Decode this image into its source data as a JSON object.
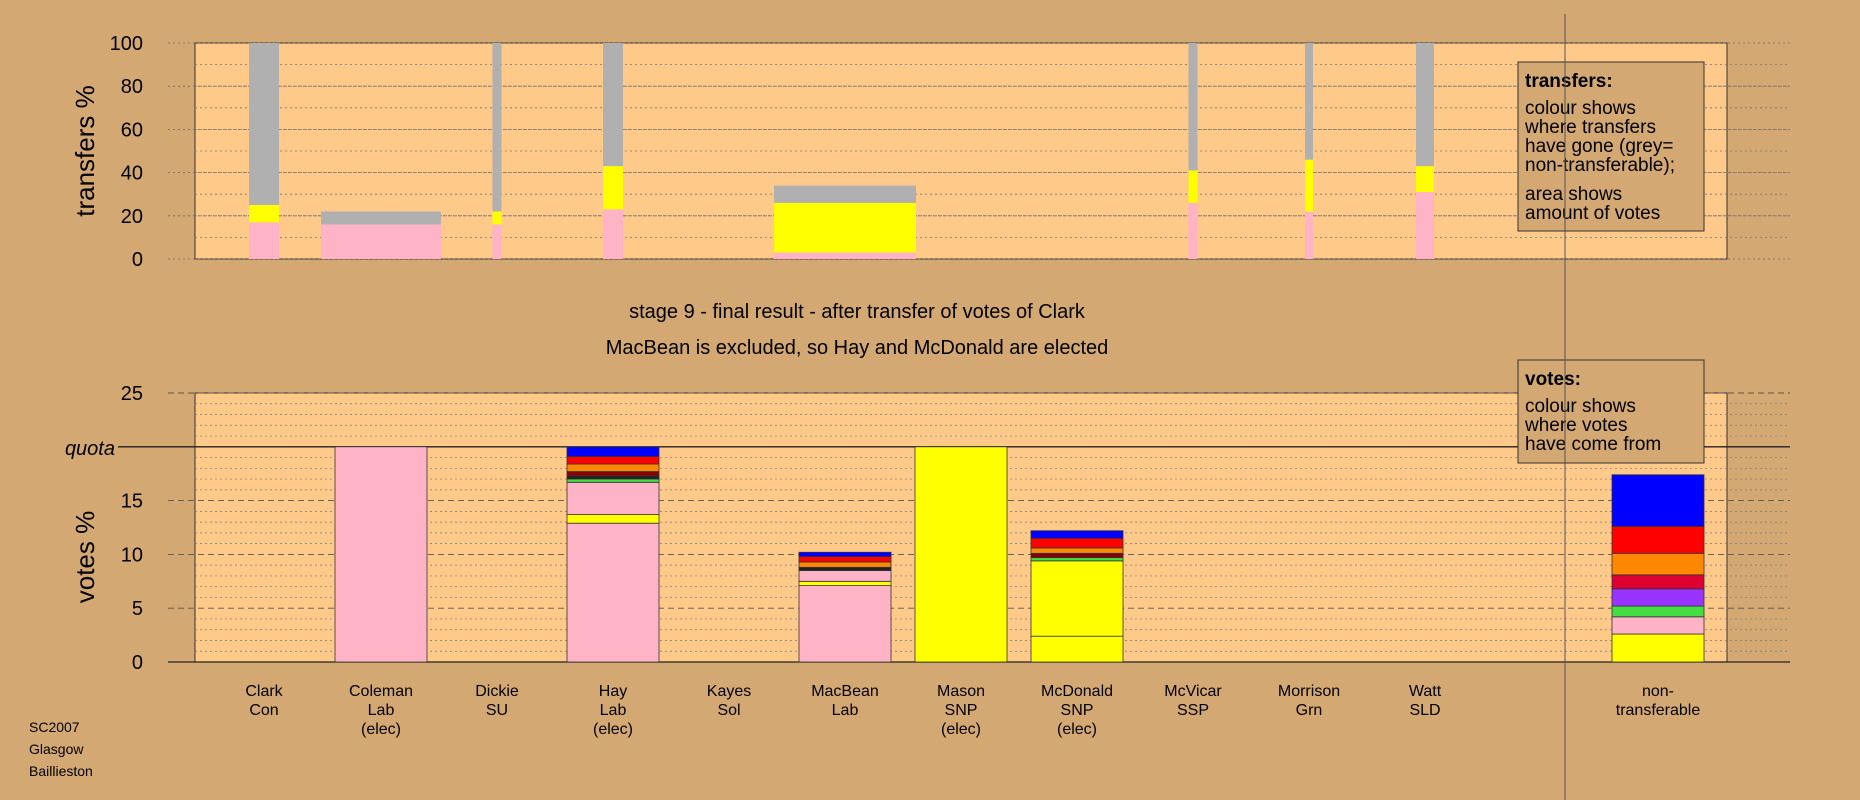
{
  "chart_data": [
    {
      "type": "bar",
      "ylabel": "transfers %",
      "ylim": [
        0,
        100
      ],
      "yticks": [
        0,
        20,
        40,
        60,
        80,
        100
      ],
      "colors": {
        "pink": "#ffb3c6",
        "yellow": "#ffff00",
        "grey": "#b0b0b0",
        "background": "#ffc98a"
      },
      "bars": [
        {
          "candidate": "Clark",
          "segments": [
            {
              "color": "pink",
              "value": 17
            },
            {
              "color": "yellow",
              "value": 8
            },
            {
              "color": "grey",
              "value": 75
            }
          ]
        },
        {
          "candidate": "Coleman",
          "segments": [
            {
              "color": "pink",
              "value": 16
            },
            {
              "color": "grey",
              "value": 6
            }
          ]
        },
        {
          "candidate": "Dickie",
          "segments": [
            {
              "color": "pink",
              "value": 16
            },
            {
              "color": "yellow",
              "value": 6
            },
            {
              "color": "grey",
              "value": 78
            }
          ]
        },
        {
          "candidate": "Hay",
          "segments": [
            {
              "color": "pink",
              "value": 23
            },
            {
              "color": "yellow",
              "value": 20
            },
            {
              "color": "grey",
              "value": 57
            }
          ]
        },
        {
          "candidate": "MacBean",
          "segments": [
            {
              "color": "pink",
              "value": 3
            },
            {
              "color": "yellow",
              "value": 23
            },
            {
              "color": "grey",
              "value": 8
            }
          ]
        },
        {
          "candidate": "McVicar",
          "segments": [
            {
              "color": "pink",
              "value": 26
            },
            {
              "color": "yellow",
              "value": 15
            },
            {
              "color": "grey",
              "value": 59
            }
          ]
        },
        {
          "candidate": "Morrison",
          "segments": [
            {
              "color": "pink",
              "value": 22
            },
            {
              "color": "yellow",
              "value": 24
            },
            {
              "color": "grey",
              "value": 54
            }
          ]
        },
        {
          "candidate": "Watt",
          "segments": [
            {
              "color": "pink",
              "value": 31
            },
            {
              "color": "yellow",
              "value": 12
            },
            {
              "color": "grey",
              "value": 57
            }
          ]
        }
      ]
    },
    {
      "type": "bar",
      "ylabel": "votes %",
      "ylim": [
        0,
        25
      ],
      "yticks": [
        0,
        5,
        10,
        15,
        20,
        25
      ],
      "quota": 20,
      "quota_label": "quota",
      "colors": {
        "pink": "#ffb3c6",
        "yellow": "#ffff00",
        "red": "#ff0000",
        "blue": "#0000ff",
        "orange": "#ff8800",
        "crimson": "#dd0033",
        "purple": "#9933ff",
        "green": "#44dd44",
        "darkred": "#8b0000",
        "black": "#222222",
        "background": "#ffc98a"
      },
      "bars": [
        {
          "candidate": "Coleman",
          "segments": [
            {
              "color": "pink",
              "value": 20.0
            }
          ]
        },
        {
          "candidate": "Hay",
          "segments": [
            {
              "color": "pink",
              "value": 12.9
            },
            {
              "color": "yellow",
              "value": 0.8
            },
            {
              "color": "pink",
              "value": 3.0
            },
            {
              "color": "green",
              "value": 0.3
            },
            {
              "color": "black",
              "value": 0.3
            },
            {
              "color": "darkred",
              "value": 0.4
            },
            {
              "color": "orange",
              "value": 0.7
            },
            {
              "color": "red",
              "value": 0.7
            },
            {
              "color": "blue",
              "value": 0.9
            }
          ]
        },
        {
          "candidate": "MacBean",
          "segments": [
            {
              "color": "pink",
              "value": 7.1
            },
            {
              "color": "yellow",
              "value": 0.4
            },
            {
              "color": "pink",
              "value": 1.0
            },
            {
              "color": "black",
              "value": 0.3
            },
            {
              "color": "orange",
              "value": 0.5
            },
            {
              "color": "red",
              "value": 0.5
            },
            {
              "color": "blue",
              "value": 0.4
            }
          ]
        },
        {
          "candidate": "Mason",
          "segments": [
            {
              "color": "yellow",
              "value": 20.0
            }
          ]
        },
        {
          "candidate": "McDonald",
          "segments": [
            {
              "color": "yellow",
              "value": 2.4
            },
            {
              "color": "yellow",
              "value": 7.0
            },
            {
              "color": "green",
              "value": 0.3
            },
            {
              "color": "darkred",
              "value": 0.4
            },
            {
              "color": "orange",
              "value": 0.5
            },
            {
              "color": "red",
              "value": 0.9
            },
            {
              "color": "blue",
              "value": 0.7
            }
          ]
        },
        {
          "candidate": "non-transferable",
          "segments": [
            {
              "color": "yellow",
              "value": 2.6
            },
            {
              "color": "pink",
              "value": 1.6
            },
            {
              "color": "green",
              "value": 1.0
            },
            {
              "color": "purple",
              "value": 1.6
            },
            {
              "color": "crimson",
              "value": 1.3
            },
            {
              "color": "orange",
              "value": 2.0
            },
            {
              "color": "red",
              "value": 2.5
            },
            {
              "color": "blue",
              "value": 4.8
            }
          ]
        }
      ]
    }
  ],
  "candidates": [
    {
      "key": "Clark",
      "lines": [
        "Clark",
        "Con"
      ]
    },
    {
      "key": "Coleman",
      "lines": [
        "Coleman",
        "Lab",
        "(elec)"
      ]
    },
    {
      "key": "Dickie",
      "lines": [
        "Dickie",
        "SU"
      ]
    },
    {
      "key": "Hay",
      "lines": [
        "Hay",
        "Lab",
        "(elec)"
      ]
    },
    {
      "key": "Kayes",
      "lines": [
        "Kayes",
        "Sol"
      ]
    },
    {
      "key": "MacBean",
      "lines": [
        "MacBean",
        "Lab"
      ]
    },
    {
      "key": "Mason",
      "lines": [
        "Mason",
        "SNP",
        "(elec)"
      ]
    },
    {
      "key": "McDonald",
      "lines": [
        "McDonald",
        "SNP",
        "(elec)"
      ]
    },
    {
      "key": "McVicar",
      "lines": [
        "McVicar",
        "SSP"
      ]
    },
    {
      "key": "Morrison",
      "lines": [
        "Morrison",
        "Grn"
      ]
    },
    {
      "key": "Watt",
      "lines": [
        "Watt",
        "SLD"
      ]
    },
    {
      "key": "non-transferable",
      "lines": [
        "non-",
        "transferable"
      ]
    }
  ],
  "stage": {
    "line1": "stage 9 - final result - after transfer of votes of Clark",
    "line2": "MacBean is excluded, so Hay and McDonald are elected"
  },
  "transfers_box": {
    "title": "transfers:",
    "lines": [
      "colour shows",
      "where transfers",
      "have gone (grey=",
      "non-transferable);",
      "area shows",
      "amount of votes"
    ]
  },
  "votes_box": {
    "title": "votes:",
    "lines": [
      "colour shows",
      "where votes",
      "have come from"
    ]
  },
  "footer": [
    "SC2007",
    "Glasgow",
    "Baillieston"
  ]
}
